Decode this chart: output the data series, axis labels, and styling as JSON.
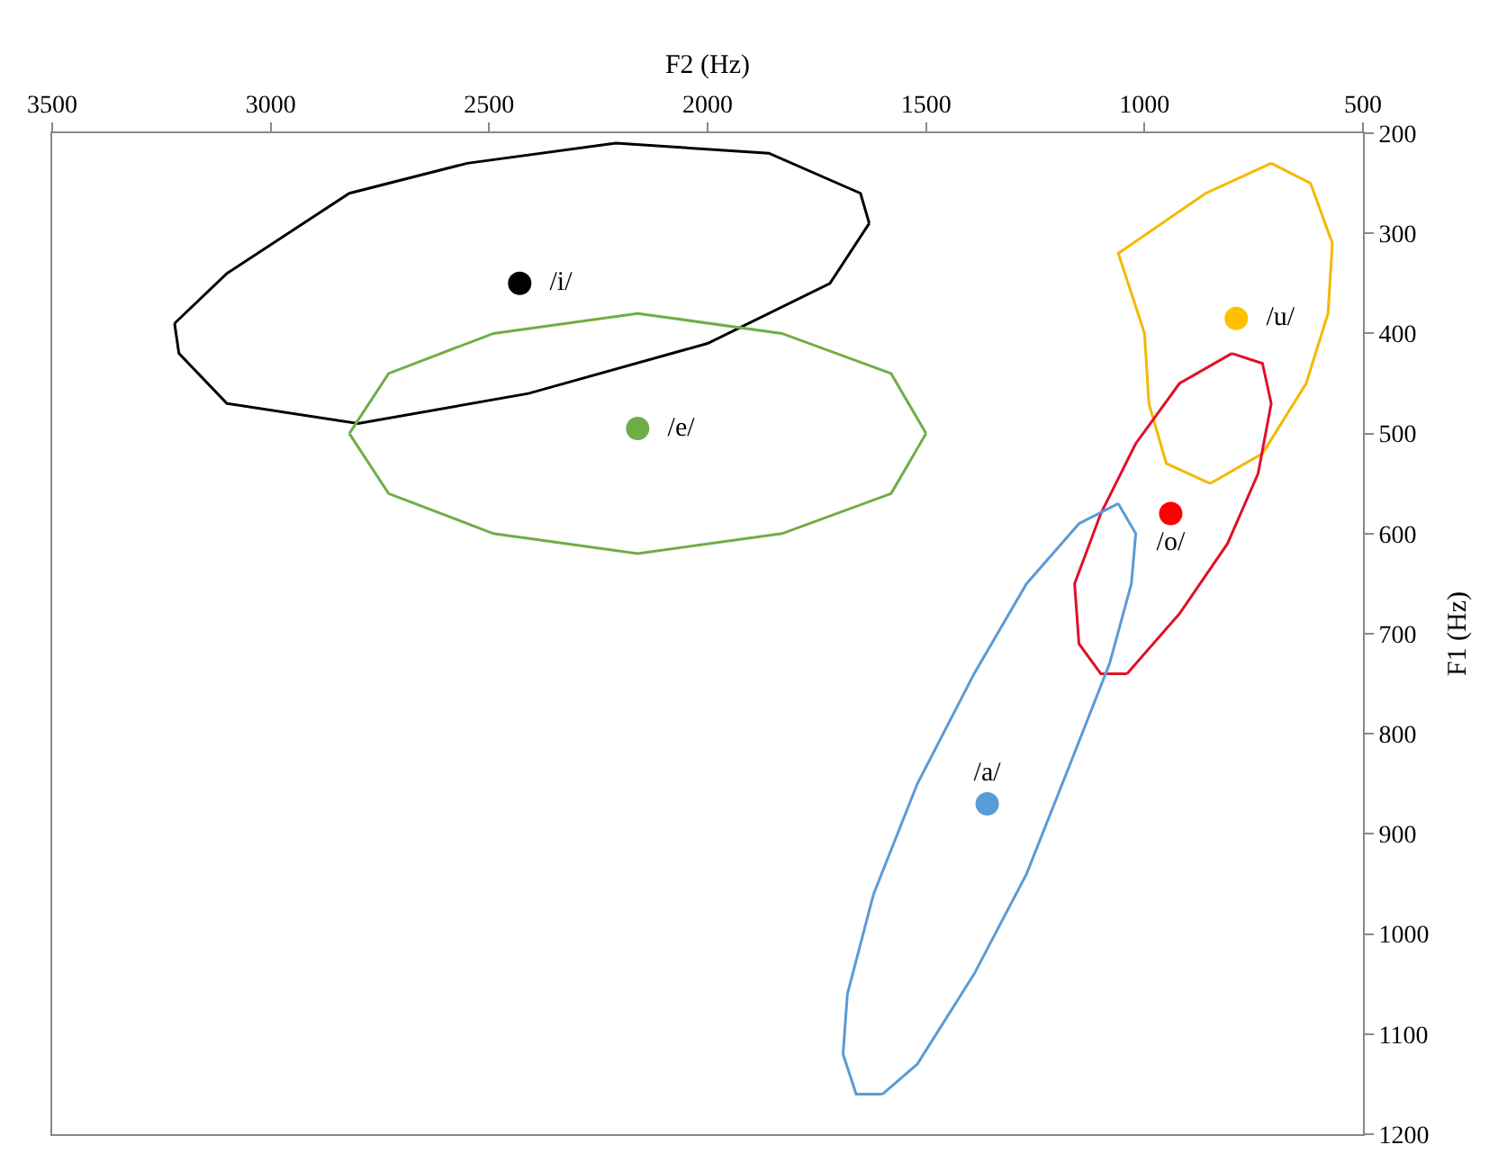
{
  "chart_data": {
    "type": "scatter",
    "xlabel": "F2 (Hz)",
    "ylabel": "F1 (Hz)",
    "xlim": [
      3500,
      500
    ],
    "xticks": [
      3500,
      3000,
      2500,
      2000,
      1500,
      1000,
      500
    ],
    "ylim": [
      1200,
      200
    ],
    "yticks": [
      200,
      300,
      400,
      500,
      600,
      700,
      800,
      900,
      1000,
      1100,
      1200
    ],
    "grid": false,
    "legend": false,
    "marker": "circle",
    "series": [
      {
        "type": "line",
        "marker": "none",
        "color": "#000000",
        "x": [
          3220,
          3100,
          2820,
          2550,
          2210,
          1860,
          1650,
          1630
        ],
        "values": [
          390,
          340,
          260,
          230,
          210,
          220,
          260,
          290
        ]
      },
      {
        "type": "line",
        "marker": "none",
        "color": "#000000",
        "x": [
          1630,
          1720,
          2000,
          2410,
          2800,
          3100,
          3210,
          3220
        ],
        "values": [
          290,
          350,
          410,
          460,
          490,
          470,
          420,
          390
        ]
      },
      {
        "type": "line",
        "marker": "none",
        "color": "#70ad47",
        "x": [
          1500,
          1580,
          1830,
          2160,
          2490,
          2730,
          2820
        ],
        "values": [
          500,
          440,
          400,
          380,
          400,
          440,
          500
        ]
      },
      {
        "type": "line",
        "marker": "none",
        "color": "#70ad47",
        "x": [
          2820,
          2730,
          2490,
          2160,
          1830,
          1580,
          1500
        ],
        "values": [
          500,
          560,
          600,
          620,
          600,
          560,
          500
        ]
      },
      {
        "type": "line",
        "marker": "none",
        "color": "#f5b800",
        "x": [
          710,
          620,
          570,
          580,
          630,
          730,
          850
        ],
        "values": [
          230,
          250,
          310,
          380,
          450,
          520,
          550
        ]
      },
      {
        "type": "line",
        "marker": "none",
        "color": "#f5b800",
        "x": [
          850,
          950,
          990,
          1000,
          1060,
          860,
          710
        ],
        "values": [
          550,
          530,
          470,
          400,
          320,
          260,
          230
        ]
      },
      {
        "type": "line",
        "marker": "none",
        "color": "#e0102a",
        "x": [
          800,
          730,
          710,
          740,
          810,
          920,
          1040
        ],
        "values": [
          420,
          430,
          470,
          540,
          610,
          680,
          740
        ]
      },
      {
        "type": "line",
        "marker": "none",
        "color": "#e0102a",
        "x": [
          1040,
          1100,
          1150,
          1160,
          1100,
          1020,
          920,
          800
        ],
        "values": [
          740,
          740,
          710,
          650,
          580,
          510,
          450,
          420
        ]
      },
      {
        "type": "line",
        "marker": "none",
        "color": "#5b9bd5",
        "x": [
          1060,
          1020,
          1030,
          1080,
          1170,
          1270,
          1390,
          1520,
          1600
        ],
        "values": [
          570,
          600,
          650,
          730,
          830,
          940,
          1040,
          1130,
          1160
        ]
      },
      {
        "type": "line",
        "marker": "none",
        "color": "#5b9bd5",
        "x": [
          1600,
          1660,
          1690,
          1680,
          1620,
          1520,
          1390,
          1270,
          1150,
          1060
        ],
        "values": [
          1160,
          1160,
          1120,
          1060,
          960,
          850,
          740,
          650,
          590,
          570
        ]
      },
      {
        "name": "/i/",
        "color": "#000000",
        "x": [
          2430
        ],
        "values": [
          350
        ]
      },
      {
        "name": "/e/",
        "color": "#70ad47",
        "x": [
          2160
        ],
        "values": [
          495
        ]
      },
      {
        "name": "/u/",
        "color": "#ffc000",
        "x": [
          790
        ],
        "values": [
          385
        ]
      },
      {
        "name": "/o/",
        "color": "#ff0000",
        "x": [
          940
        ],
        "values": [
          580
        ]
      },
      {
        "name": "/a/",
        "color": "#5b9bd5",
        "x": [
          1360
        ],
        "values": [
          870
        ]
      }
    ]
  }
}
